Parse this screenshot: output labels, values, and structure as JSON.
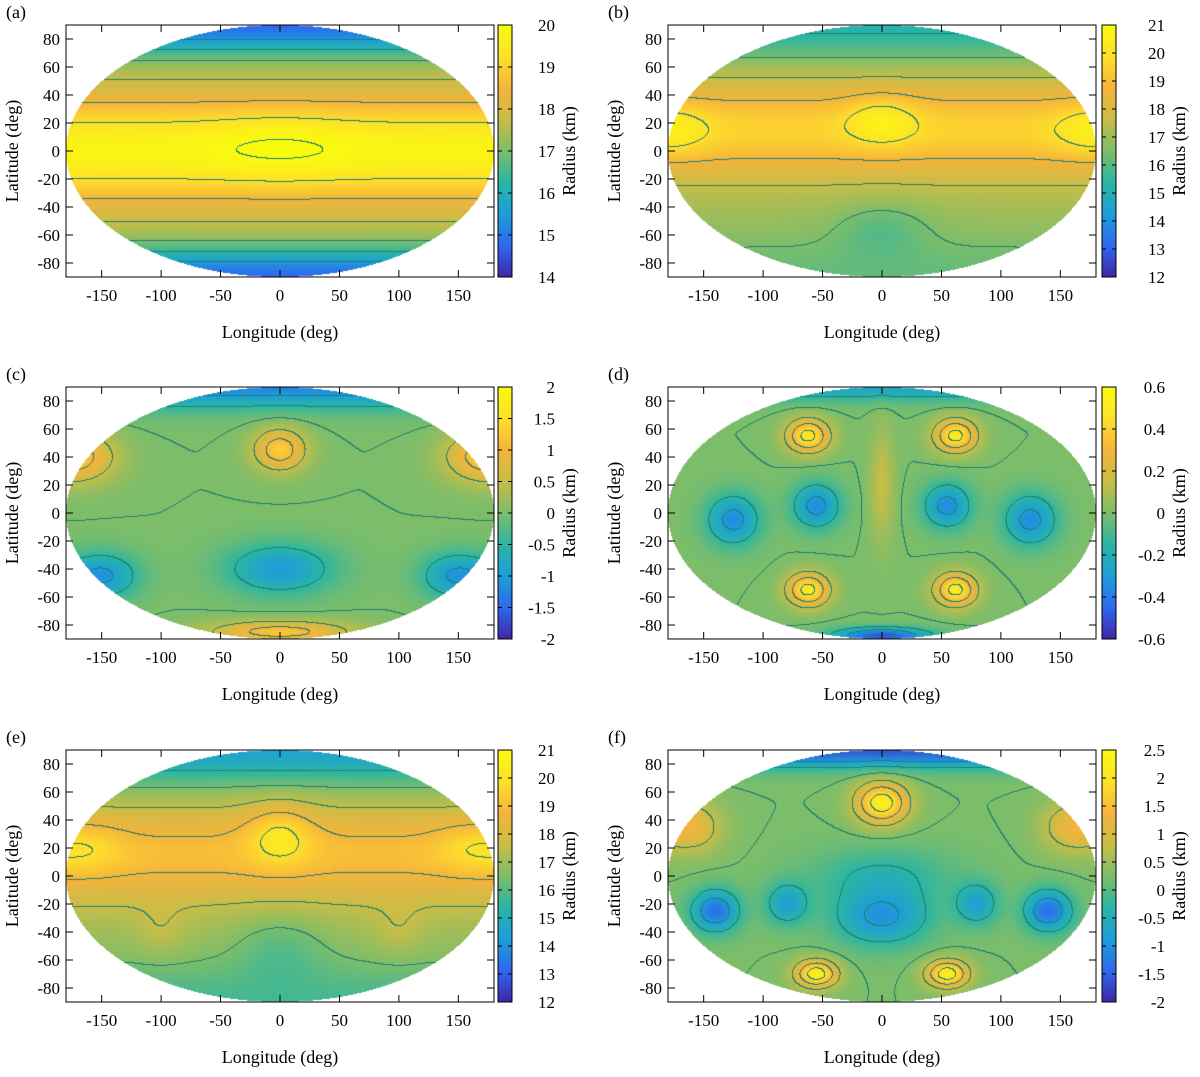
{
  "colors": {
    "stops": [
      "#3e26a8",
      "#2f68ee",
      "#1d9ed8",
      "#2ab5a4",
      "#7cbd6a",
      "#c8bd47",
      "#f5b43c",
      "#fee02a",
      "#f9fb0e"
    ],
    "contour": "#1f7f72",
    "background": "#ffffff"
  },
  "chart_data": [
    {
      "panel": "(a)",
      "type": "heatmap",
      "projection": "mollweide-like ellipse",
      "xlabel": "Longitude (deg)",
      "ylabel": "Latitude (deg)",
      "colorbar_label": "Radius (km)",
      "xlim": [
        -180,
        180
      ],
      "ylim": [
        -90,
        90
      ],
      "clim": [
        14,
        20
      ],
      "xticks": [
        -150,
        -100,
        -50,
        0,
        50,
        100,
        150
      ],
      "yticks": [
        80,
        60,
        40,
        20,
        0,
        -20,
        -40,
        -60,
        -80
      ],
      "cticks": [
        "20",
        "19",
        "18",
        "17",
        "16",
        "15",
        "14"
      ],
      "features": [
        {
          "kind": "band",
          "lat": 0,
          "value": 19.8,
          "width": 40
        },
        {
          "kind": "band",
          "lat": 90,
          "value": 14.8,
          "width": 20
        },
        {
          "kind": "band",
          "lat": -90,
          "value": 14.8,
          "width": 20
        },
        {
          "kind": "bump",
          "lon": 0,
          "lat": 5,
          "value": 0.3,
          "sx": 60,
          "sy": 25
        }
      ]
    },
    {
      "panel": "(b)",
      "type": "heatmap",
      "projection": "mollweide-like ellipse",
      "xlabel": "Longitude (deg)",
      "ylabel": "Latitude (deg)",
      "colorbar_label": "Radius (km)",
      "xlim": [
        -180,
        180
      ],
      "ylim": [
        -90,
        90
      ],
      "clim": [
        12,
        21
      ],
      "xticks": [
        -150,
        -100,
        -50,
        0,
        50,
        100,
        150
      ],
      "yticks": [
        80,
        60,
        40,
        20,
        0,
        -20,
        -40,
        -60,
        -80
      ],
      "cticks": [
        "21",
        "20",
        "19",
        "18",
        "17",
        "16",
        "15",
        "14",
        "13",
        "12"
      ],
      "features": [
        {
          "kind": "band",
          "lat": 15,
          "value": 19.5,
          "width": 35
        },
        {
          "kind": "band",
          "lat": 90,
          "value": 15.2,
          "width": 25
        },
        {
          "kind": "band",
          "lat": -90,
          "value": 16.2,
          "width": 30
        },
        {
          "kind": "bump",
          "lon": 0,
          "lat": 22,
          "value": 1.2,
          "sx": 30,
          "sy": 18
        },
        {
          "kind": "bump",
          "lon": 170,
          "lat": 15,
          "value": 0.6,
          "sx": 30,
          "sy": 18
        },
        {
          "kind": "bump",
          "lon": -170,
          "lat": 15,
          "value": 0.6,
          "sx": 30,
          "sy": 18
        },
        {
          "kind": "bump",
          "lon": 0,
          "lat": -55,
          "value": -0.8,
          "sx": 40,
          "sy": 20
        }
      ]
    },
    {
      "panel": "(c)",
      "type": "heatmap",
      "projection": "mollweide-like ellipse",
      "xlabel": "Longitude (deg)",
      "ylabel": "Latitude (deg)",
      "colorbar_label": "Radius (km)",
      "xlim": [
        -180,
        180
      ],
      "ylim": [
        -90,
        90
      ],
      "clim": [
        -2,
        2
      ],
      "xticks": [
        -150,
        -100,
        -50,
        0,
        50,
        100,
        150
      ],
      "yticks": [
        80,
        60,
        40,
        20,
        0,
        -20,
        -40,
        -60,
        -80
      ],
      "cticks": [
        "2",
        "1.5",
        "1",
        "0.5",
        "0",
        "-0.5",
        "-1",
        "-1.5",
        "-2"
      ],
      "features": [
        {
          "kind": "bump",
          "lon": 0,
          "lat": 45,
          "value": 1.3,
          "sx": 22,
          "sy": 15
        },
        {
          "kind": "bump",
          "lon": 165,
          "lat": 40,
          "value": 0.9,
          "sx": 30,
          "sy": 18
        },
        {
          "kind": "bump",
          "lon": -165,
          "lat": 40,
          "value": 0.9,
          "sx": 30,
          "sy": 18
        },
        {
          "kind": "bump",
          "lon": 0,
          "lat": -40,
          "value": -1.0,
          "sx": 45,
          "sy": 18
        },
        {
          "kind": "bump",
          "lon": -150,
          "lat": -45,
          "value": -1.1,
          "sx": 30,
          "sy": 16
        },
        {
          "kind": "bump",
          "lon": 150,
          "lat": -45,
          "value": -1.1,
          "sx": 30,
          "sy": 16
        },
        {
          "kind": "bump",
          "lon": 0,
          "lat": -85,
          "value": 1.2,
          "sx": 60,
          "sy": 8
        },
        {
          "kind": "band",
          "lat": 90,
          "value": -1.2,
          "width": 15
        }
      ]
    },
    {
      "panel": "(d)",
      "type": "heatmap",
      "projection": "mollweide-like ellipse",
      "xlabel": "Longitude (deg)",
      "ylabel": "Latitude (deg)",
      "colorbar_label": "Radius (km)",
      "xlim": [
        -180,
        180
      ],
      "ylim": [
        -90,
        90
      ],
      "clim": [
        -0.6,
        0.6
      ],
      "xticks": [
        -150,
        -100,
        -50,
        0,
        50,
        100,
        150
      ],
      "yticks": [
        80,
        60,
        40,
        20,
        0,
        -20,
        -40,
        -60,
        -80
      ],
      "cticks": [
        "0.6",
        "0.4",
        "0.2",
        "0",
        "-0.2",
        "-0.4",
        "-0.6"
      ],
      "features": [
        {
          "kind": "bump",
          "lon": -62,
          "lat": 55,
          "value": 0.5,
          "sx": 18,
          "sy": 12
        },
        {
          "kind": "bump",
          "lon": 62,
          "lat": 55,
          "value": 0.5,
          "sx": 18,
          "sy": 12
        },
        {
          "kind": "bump",
          "lon": -62,
          "lat": -55,
          "value": 0.5,
          "sx": 18,
          "sy": 12
        },
        {
          "kind": "bump",
          "lon": 62,
          "lat": -55,
          "value": 0.5,
          "sx": 18,
          "sy": 12
        },
        {
          "kind": "bump",
          "lon": -55,
          "lat": 5,
          "value": -0.35,
          "sx": 20,
          "sy": 16
        },
        {
          "kind": "bump",
          "lon": 55,
          "lat": 5,
          "value": -0.35,
          "sx": 20,
          "sy": 16
        },
        {
          "kind": "bump",
          "lon": -125,
          "lat": -5,
          "value": -0.35,
          "sx": 22,
          "sy": 18
        },
        {
          "kind": "bump",
          "lon": 125,
          "lat": -5,
          "value": -0.35,
          "sx": 22,
          "sy": 18
        },
        {
          "kind": "bump",
          "lon": 0,
          "lat": -88,
          "value": -0.5,
          "sx": 40,
          "sy": 6
        },
        {
          "kind": "bump",
          "lon": 0,
          "lat": 20,
          "value": 0.15,
          "sx": 10,
          "sy": 40
        },
        {
          "kind": "band",
          "lat": 90,
          "value": -0.25,
          "width": 10
        }
      ]
    },
    {
      "panel": "(e)",
      "type": "heatmap",
      "projection": "mollweide-like ellipse",
      "xlabel": "Longitude (deg)",
      "ylabel": "Latitude (deg)",
      "colorbar_label": "Radius (km)",
      "xlim": [
        -180,
        180
      ],
      "ylim": [
        -90,
        90
      ],
      "clim": [
        12,
        21
      ],
      "xticks": [
        -150,
        -100,
        -50,
        0,
        50,
        100,
        150
      ],
      "yticks": [
        80,
        60,
        40,
        20,
        0,
        -20,
        -40,
        -60,
        -80
      ],
      "cticks": [
        "21",
        "20",
        "19",
        "18",
        "17",
        "16",
        "15",
        "14",
        "13",
        "12"
      ],
      "features": [
        {
          "kind": "band",
          "lat": 15,
          "value": 19.0,
          "width": 35
        },
        {
          "kind": "band",
          "lat": 90,
          "value": 14.5,
          "width": 25
        },
        {
          "kind": "band",
          "lat": -90,
          "value": 15.8,
          "width": 30
        },
        {
          "kind": "bump",
          "lon": 0,
          "lat": 30,
          "value": 1.5,
          "sx": 28,
          "sy": 22
        },
        {
          "kind": "bump",
          "lon": 160,
          "lat": 20,
          "value": 0.8,
          "sx": 30,
          "sy": 18
        },
        {
          "kind": "bump",
          "lon": -160,
          "lat": 20,
          "value": 0.8,
          "sx": 30,
          "sy": 18
        },
        {
          "kind": "bump",
          "lon": -100,
          "lat": -40,
          "value": 0.5,
          "sx": 20,
          "sy": 18
        },
        {
          "kind": "bump",
          "lon": 100,
          "lat": -40,
          "value": 0.5,
          "sx": 20,
          "sy": 18
        },
        {
          "kind": "bump",
          "lon": 0,
          "lat": -50,
          "value": -0.8,
          "sx": 40,
          "sy": 25
        }
      ]
    },
    {
      "panel": "(f)",
      "type": "heatmap",
      "projection": "mollweide-like ellipse",
      "xlabel": "Longitude (deg)",
      "ylabel": "Latitude (deg)",
      "colorbar_label": "Radius (km)",
      "xlim": [
        -180,
        180
      ],
      "ylim": [
        -90,
        90
      ],
      "clim": [
        -2,
        2.5
      ],
      "xticks": [
        -150,
        -100,
        -50,
        0,
        50,
        100,
        150
      ],
      "yticks": [
        80,
        60,
        40,
        20,
        0,
        -20,
        -40,
        -60,
        -80
      ],
      "cticks": [
        "2.5",
        "2",
        "1.5",
        "1",
        "0.5",
        "0",
        "-0.5",
        "-1",
        "-1.5",
        "-2"
      ],
      "features": [
        {
          "kind": "bump",
          "lon": 0,
          "lat": 52,
          "value": 2.0,
          "sx": 22,
          "sy": 15
        },
        {
          "kind": "bump",
          "lon": -55,
          "lat": -70,
          "value": 2.0,
          "sx": 18,
          "sy": 10
        },
        {
          "kind": "bump",
          "lon": 55,
          "lat": -70,
          "value": 2.0,
          "sx": 18,
          "sy": 10
        },
        {
          "kind": "bump",
          "lon": 160,
          "lat": 35,
          "value": 1.0,
          "sx": 25,
          "sy": 18
        },
        {
          "kind": "bump",
          "lon": -160,
          "lat": 35,
          "value": 1.0,
          "sx": 25,
          "sy": 18
        },
        {
          "kind": "bump",
          "lon": 0,
          "lat": -30,
          "value": -1.2,
          "sx": 40,
          "sy": 20
        },
        {
          "kind": "bump",
          "lon": -140,
          "lat": -25,
          "value": -1.6,
          "sx": 20,
          "sy": 15
        },
        {
          "kind": "bump",
          "lon": 140,
          "lat": -25,
          "value": -1.6,
          "sx": 20,
          "sy": 15
        },
        {
          "kind": "bump",
          "lon": -80,
          "lat": -20,
          "value": -1.0,
          "sx": 18,
          "sy": 15
        },
        {
          "kind": "bump",
          "lon": 80,
          "lat": -20,
          "value": -1.0,
          "sx": 18,
          "sy": 15
        },
        {
          "kind": "band",
          "lat": 90,
          "value": -1.6,
          "width": 12
        },
        {
          "kind": "bump",
          "lon": 0,
          "lat": 0,
          "value": -0.6,
          "sx": 60,
          "sy": 20
        }
      ]
    }
  ]
}
